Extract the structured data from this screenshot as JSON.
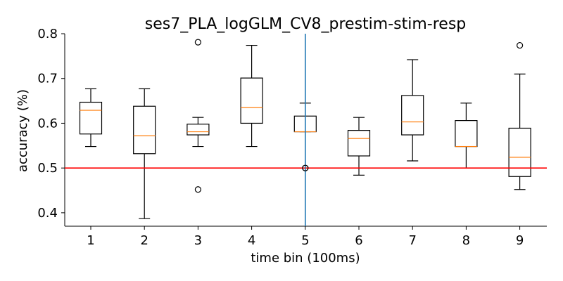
{
  "chart_data": {
    "type": "box",
    "title": "ses7_PLA_logGLM_CV8_prestim-stim-resp",
    "xlabel": "time bin (100ms)",
    "ylabel": "accuracy (%)",
    "ylim": [
      0.37,
      0.8
    ],
    "yticks": [
      "0.4",
      "0.5",
      "0.6",
      "0.7",
      "0.8"
    ],
    "categories": [
      "1",
      "2",
      "3",
      "4",
      "5",
      "6",
      "7",
      "8",
      "9"
    ],
    "boxes": [
      {
        "whislo": 0.548,
        "q1": 0.576,
        "med": 0.629,
        "q3": 0.647,
        "whishi": 0.677,
        "fliers": []
      },
      {
        "whislo": 0.387,
        "q1": 0.532,
        "med": 0.572,
        "q3": 0.638,
        "whishi": 0.677,
        "fliers": []
      },
      {
        "whislo": 0.548,
        "q1": 0.574,
        "med": 0.581,
        "q3": 0.598,
        "whishi": 0.613,
        "fliers": [
          0.452,
          0.781
        ]
      },
      {
        "whislo": 0.548,
        "q1": 0.6,
        "med": 0.635,
        "q3": 0.701,
        "whishi": 0.774,
        "fliers": []
      },
      {
        "whislo": 0.581,
        "q1": 0.581,
        "med": 0.581,
        "q3": 0.616,
        "whishi": 0.645,
        "fliers": [
          0.5
        ]
      },
      {
        "whislo": 0.484,
        "q1": 0.527,
        "med": 0.566,
        "q3": 0.584,
        "whishi": 0.613,
        "fliers": []
      },
      {
        "whislo": 0.516,
        "q1": 0.574,
        "med": 0.603,
        "q3": 0.662,
        "whishi": 0.742,
        "fliers": []
      },
      {
        "whislo": 0.5,
        "q1": 0.548,
        "med": 0.548,
        "q3": 0.606,
        "whishi": 0.645,
        "fliers": []
      },
      {
        "whislo": 0.452,
        "q1": 0.481,
        "med": 0.524,
        "q3": 0.589,
        "whishi": 0.71,
        "fliers": [
          0.774
        ]
      }
    ],
    "hline": {
      "y": 0.5,
      "color": "#ff0000"
    },
    "vline": {
      "x": "5",
      "color": "#1f77b4"
    },
    "colors": {
      "median": "#ff7f0e",
      "box": "#000000"
    },
    "grid": false
  }
}
